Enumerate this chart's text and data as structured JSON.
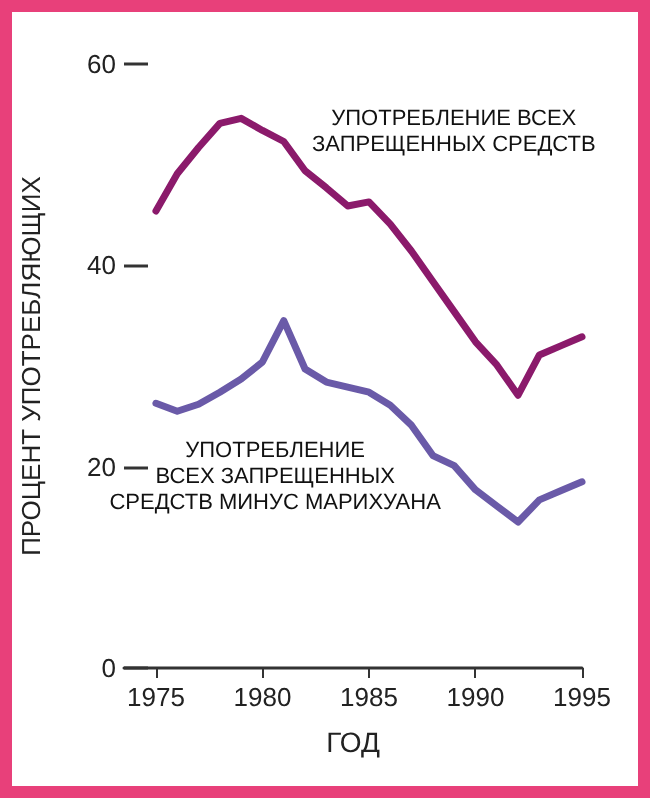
{
  "chart_data": {
    "type": "line",
    "xlabel": "ГОД",
    "ylabel": "ПРОЦЕНТ УПОТРЕБЛЯЮЩИХ",
    "x": [
      1975,
      1976,
      1977,
      1978,
      1979,
      1980,
      1981,
      1982,
      1983,
      1984,
      1985,
      1986,
      1987,
      1988,
      1989,
      1990,
      1991,
      1992,
      1993,
      1994,
      1995
    ],
    "series": [
      {
        "name": "УПОТРЕБЛЕНИЕ ВСЕХ\nЗАПРЕЩЕННЫХ СРЕДСТВ",
        "color": "#8b1a6b",
        "values": [
          45.4,
          49.1,
          51.7,
          54.1,
          54.6,
          53.4,
          52.3,
          49.4,
          47.7,
          45.9,
          46.3,
          44.1,
          41.4,
          38.4,
          35.4,
          32.4,
          30.1,
          27.1,
          31.1,
          32.0,
          32.9
        ]
      },
      {
        "name": "УПОТРЕБЛЕНИЕ\nВСЕХ ЗАПРЕЩЕННЫХ\nСРЕДСТВ МИНУС МАРИХУАНА",
        "color": "#6a5aa8",
        "values": [
          26.3,
          25.5,
          26.2,
          27.4,
          28.7,
          30.4,
          34.5,
          29.7,
          28.4,
          27.9,
          27.4,
          26.1,
          24.1,
          21.1,
          20.1,
          17.7,
          16.1,
          14.5,
          16.7,
          17.6,
          18.5
        ]
      }
    ],
    "xlim": [
      1973.5,
      1995
    ],
    "xticks": [
      1975,
      1980,
      1985,
      1990,
      1995
    ],
    "ylim": [
      0,
      60
    ],
    "yticks": [
      0,
      20,
      40,
      60
    ],
    "grid": false,
    "legend": false,
    "marker": "none",
    "line_style": "solid"
  }
}
